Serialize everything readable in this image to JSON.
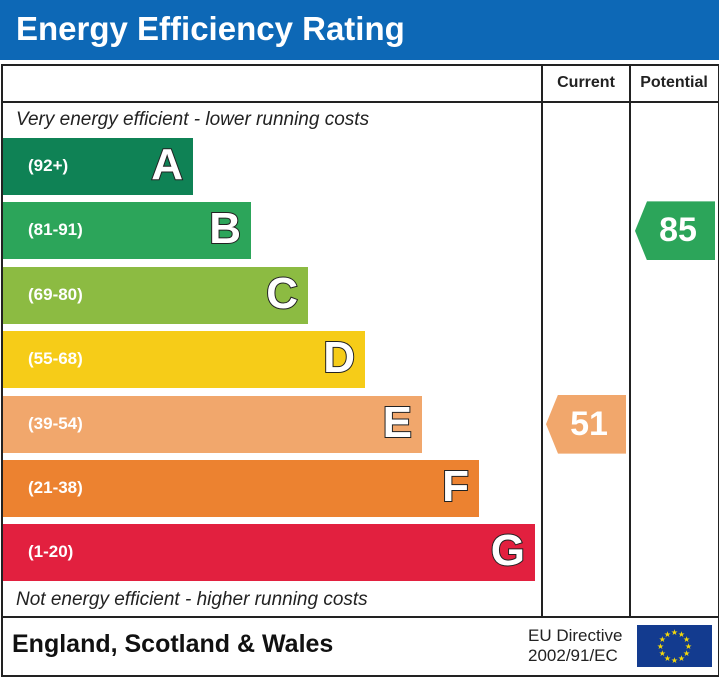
{
  "header": {
    "title": "Energy Efficiency Rating"
  },
  "columns": {
    "current": "Current",
    "potential": "Potential"
  },
  "notes": {
    "top": "Very energy efficient - lower running costs",
    "bottom": "Not energy efficient - higher running costs"
  },
  "chart_data": {
    "type": "bar",
    "title": "Energy Efficiency Rating",
    "bands": [
      {
        "letter": "A",
        "range": "(92+)",
        "min": 92,
        "max": 100,
        "color": "#0f8255"
      },
      {
        "letter": "B",
        "range": "(81-91)",
        "min": 81,
        "max": 91,
        "color": "#2ca55a"
      },
      {
        "letter": "C",
        "range": "(69-80)",
        "min": 69,
        "max": 80,
        "color": "#8cbb42"
      },
      {
        "letter": "D",
        "range": "(55-68)",
        "min": 55,
        "max": 68,
        "color": "#f6cc18"
      },
      {
        "letter": "E",
        "range": "(39-54)",
        "min": 39,
        "max": 54,
        "color": "#f1a76c"
      },
      {
        "letter": "F",
        "range": "(21-38)",
        "min": 21,
        "max": 38,
        "color": "#ec8230"
      },
      {
        "letter": "G",
        "range": "(1-20)",
        "min": 1,
        "max": 20,
        "color": "#e2203f"
      }
    ],
    "current": {
      "value": 51,
      "band": "E"
    },
    "potential": {
      "value": 85,
      "band": "B"
    }
  },
  "footer": {
    "region": "England, Scotland & Wales",
    "directive_line1": "EU Directive",
    "directive_line2": "2002/91/EC"
  },
  "colors": {
    "header": "#0d68b6"
  }
}
